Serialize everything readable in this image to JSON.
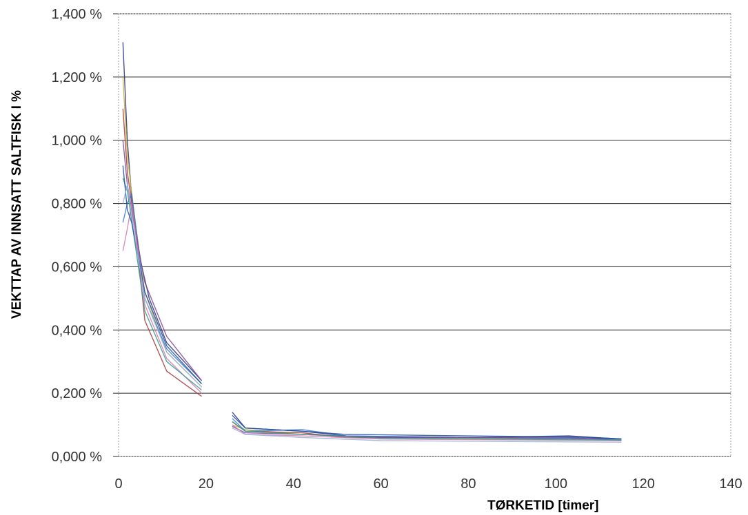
{
  "chart_data": {
    "type": "line",
    "title": "",
    "xlabel": "TØRKETID  [timer]",
    "ylabel": "VEKTTAP AV INNSATT SALTFISK I %",
    "xlim": [
      0,
      140
    ],
    "ylim": [
      0,
      1.4
    ],
    "x_ticks": [
      0,
      20,
      40,
      60,
      80,
      100,
      120,
      140
    ],
    "x_tick_labels": [
      "0",
      "20",
      "40",
      "60",
      "80",
      "100",
      "120",
      "140"
    ],
    "y_ticks": [
      0,
      0.2,
      0.4,
      0.6,
      0.8,
      1.0,
      1.2,
      1.4
    ],
    "y_tick_labels": [
      "0,000 %",
      "0,200 %",
      "0,400 %",
      "0,600 %",
      "0,800 %",
      "1,000 %",
      "1,200 %",
      "1,400 %"
    ],
    "grid": "horizontal",
    "legend": "none",
    "series": [
      {
        "color": "#2b2f7a",
        "segments": [
          [
            [
              1,
              1.31
            ],
            [
              2,
              1.0
            ],
            [
              3,
              0.82
            ],
            [
              5,
              0.62
            ],
            [
              7,
              0.5
            ],
            [
              11,
              0.36
            ],
            [
              19,
              0.24
            ]
          ],
          [
            [
              26,
              0.14
            ],
            [
              29,
              0.09
            ],
            [
              42,
              0.08
            ],
            [
              52,
              0.065
            ],
            [
              80,
              0.06
            ],
            [
              103,
              0.065
            ],
            [
              115,
              0.055
            ]
          ]
        ]
      },
      {
        "color": "#c8b43a",
        "segments": [
          [
            [
              1,
              1.2
            ],
            [
              2,
              0.95
            ],
            [
              4,
              0.72
            ],
            [
              6,
              0.52
            ],
            [
              11,
              0.33
            ],
            [
              19,
              0.22
            ]
          ],
          [
            [
              26,
              0.1
            ],
            [
              29,
              0.085
            ],
            [
              42,
              0.07
            ],
            [
              60,
              0.06
            ],
            [
              115,
              0.055
            ]
          ]
        ]
      },
      {
        "color": "#a33a3a",
        "segments": [
          [
            [
              1,
              1.1
            ],
            [
              2,
              0.9
            ],
            [
              4,
              0.7
            ],
            [
              6,
              0.43
            ],
            [
              11,
              0.27
            ],
            [
              19,
              0.19
            ]
          ],
          [
            [
              26,
              0.11
            ],
            [
              29,
              0.08
            ],
            [
              42,
              0.075
            ],
            [
              52,
              0.06
            ],
            [
              80,
              0.06
            ],
            [
              115,
              0.055
            ]
          ]
        ]
      },
      {
        "color": "#3a7bd5",
        "segments": [
          [
            [
              1,
              0.74
            ],
            [
              2,
              0.8
            ],
            [
              3,
              0.83
            ],
            [
              6,
              0.5
            ],
            [
              11,
              0.34
            ],
            [
              19,
              0.23
            ]
          ],
          [
            [
              26,
              0.12
            ],
            [
              29,
              0.08
            ],
            [
              42,
              0.085
            ],
            [
              52,
              0.065
            ],
            [
              80,
              0.06
            ],
            [
              115,
              0.055
            ]
          ]
        ]
      },
      {
        "color": "#7a4a9a",
        "segments": [
          [
            [
              1,
              1.0
            ],
            [
              2,
              0.86
            ],
            [
              4,
              0.7
            ],
            [
              6,
              0.55
            ],
            [
              11,
              0.38
            ],
            [
              19,
              0.24
            ]
          ],
          [
            [
              26,
              0.095
            ],
            [
              29,
              0.075
            ],
            [
              42,
              0.07
            ],
            [
              60,
              0.06
            ],
            [
              103,
              0.06
            ],
            [
              115,
              0.05
            ]
          ]
        ]
      },
      {
        "color": "#d47ab0",
        "segments": [
          [
            [
              1,
              0.65
            ],
            [
              2,
              0.72
            ],
            [
              3,
              0.8
            ],
            [
              6,
              0.48
            ],
            [
              11,
              0.31
            ],
            [
              19,
              0.2
            ]
          ],
          [
            [
              26,
              0.1
            ],
            [
              29,
              0.07
            ],
            [
              42,
              0.065
            ],
            [
              60,
              0.055
            ],
            [
              115,
              0.05
            ]
          ]
        ]
      },
      {
        "color": "#3a9a8a",
        "segments": [
          [
            [
              1,
              0.88
            ],
            [
              2,
              0.84
            ],
            [
              4,
              0.65
            ],
            [
              6,
              0.46
            ],
            [
              11,
              0.3
            ],
            [
              19,
              0.21
            ]
          ],
          [
            [
              26,
              0.11
            ],
            [
              29,
              0.08
            ],
            [
              42,
              0.07
            ],
            [
              60,
              0.058
            ],
            [
              115,
              0.052
            ]
          ]
        ]
      },
      {
        "color": "#1f4fa0",
        "segments": [
          [
            [
              1,
              0.92
            ],
            [
              2,
              0.78
            ],
            [
              3,
              0.74
            ],
            [
              6,
              0.52
            ],
            [
              11,
              0.35
            ],
            [
              19,
              0.23
            ]
          ],
          [
            [
              26,
              0.13
            ],
            [
              29,
              0.09
            ],
            [
              42,
              0.08
            ],
            [
              52,
              0.07
            ],
            [
              80,
              0.065
            ],
            [
              103,
              0.062
            ],
            [
              115,
              0.056
            ]
          ]
        ]
      },
      {
        "color": "#9ab0d8",
        "segments": [
          [
            [
              1,
              0.8
            ],
            [
              2,
              0.86
            ],
            [
              4,
              0.67
            ],
            [
              6,
              0.5
            ],
            [
              11,
              0.33
            ],
            [
              19,
              0.22
            ]
          ],
          [
            [
              26,
              0.09
            ],
            [
              29,
              0.07
            ],
            [
              42,
              0.06
            ],
            [
              60,
              0.05
            ],
            [
              115,
              0.045
            ]
          ]
        ]
      }
    ]
  }
}
